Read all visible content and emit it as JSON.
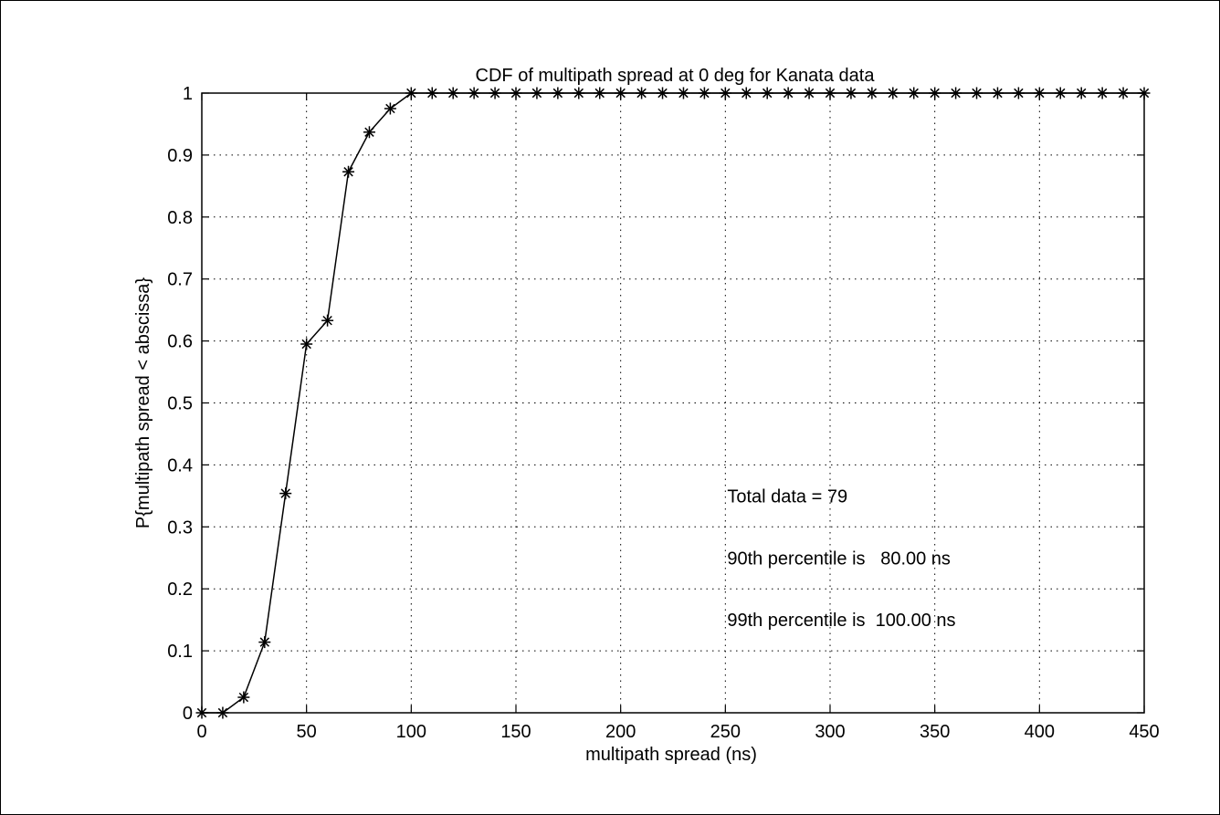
{
  "chart_data": {
    "type": "line",
    "title": "CDF of multipath spread at 0 deg for Kanata data",
    "xlabel": "multipath spread (ns)",
    "ylabel": "P{multipath spread < abscissa}",
    "xlim": [
      0,
      450
    ],
    "ylim": [
      0,
      1
    ],
    "xticks": [
      0,
      50,
      100,
      150,
      200,
      250,
      300,
      350,
      400,
      450
    ],
    "yticks": [
      0,
      0.1,
      0.2,
      0.3,
      0.4,
      0.5,
      0.6,
      0.7,
      0.8,
      0.9,
      1
    ],
    "grid": true,
    "marker": "asterisk",
    "series": [
      {
        "x": [
          0,
          10,
          20,
          30,
          40,
          50,
          60,
          70,
          80,
          90,
          100,
          110,
          120,
          130,
          140,
          150,
          160,
          170,
          180,
          190,
          200,
          210,
          220,
          230,
          240,
          250,
          260,
          270,
          280,
          290,
          300,
          310,
          320,
          330,
          340,
          350,
          360,
          370,
          380,
          390,
          400,
          410,
          420,
          430,
          440,
          450
        ],
        "values": [
          0,
          0,
          0.025,
          0.114,
          0.354,
          0.595,
          0.633,
          0.873,
          0.937,
          0.975,
          1,
          1,
          1,
          1,
          1,
          1,
          1,
          1,
          1,
          1,
          1,
          1,
          1,
          1,
          1,
          1,
          1,
          1,
          1,
          1,
          1,
          1,
          1,
          1,
          1,
          1,
          1,
          1,
          1,
          1,
          1,
          1,
          1,
          1,
          1,
          1
        ]
      }
    ],
    "annotations": [
      "Total data = 79",
      "90th percentile is   80.00 ns",
      "99th percentile is  100.00 ns"
    ]
  }
}
